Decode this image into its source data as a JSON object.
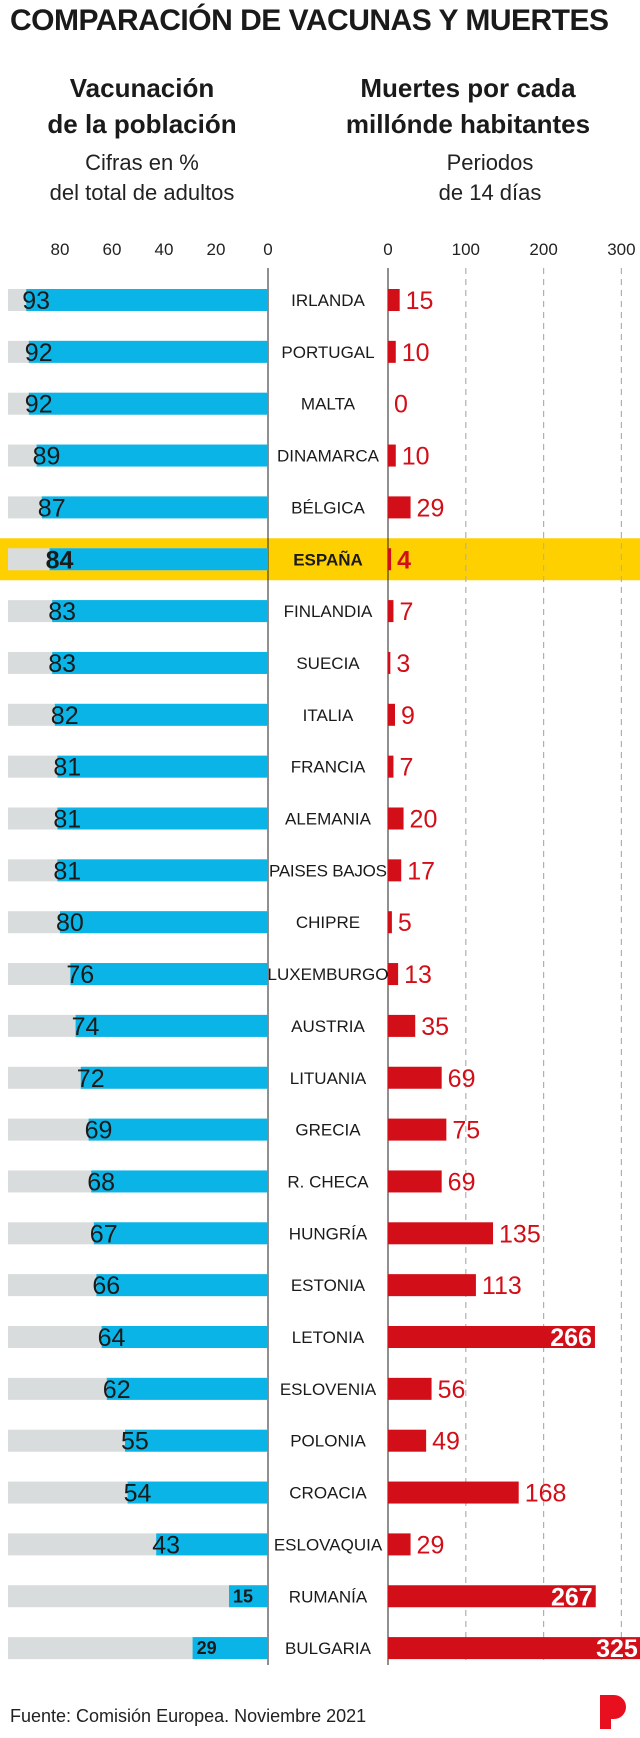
{
  "title": "COMPARACIÓN DE VACUNAS Y MUERTES",
  "left_panel": {
    "title_line1": "Vacunación",
    "title_line2": "de la población",
    "subtitle_line1": "Cifras en %",
    "subtitle_line2": "del total de adultos"
  },
  "right_panel": {
    "title_line1": "Muertes por cada",
    "title_line2": "millónde habitantes",
    "subtitle_line1": "Periodos",
    "subtitle_line2": "de 14 días"
  },
  "source": "Fuente: Comisión Europea. Noviembre 2021",
  "colors": {
    "vaccination": "#0ab4e6",
    "background_bar": "#d9dcdc",
    "deaths": "#d20e18",
    "highlight": "#ffd000",
    "grid": "#b0b0b0"
  },
  "chart_data": [
    {
      "type": "bar",
      "orientation": "horizontal",
      "direction": "right-to-left",
      "title": "Vacunación de la población",
      "subtitle": "Cifras en % del total de adultos",
      "xlim": [
        0,
        100
      ],
      "ticks": [
        80,
        60,
        40,
        20,
        0
      ],
      "categories": [
        "IRLANDA",
        "PORTUGAL",
        "MALTA",
        "DINAMARCA",
        "BÉLGICA",
        "ESPAÑA",
        "FINLANDIA",
        "SUECIA",
        "ITALIA",
        "FRANCIA",
        "ALEMANIA",
        "PAISES BAJOS",
        "CHIPRE",
        "LUXEMBURGO",
        "AUSTRIA",
        "LITUANIA",
        "GRECIA",
        "R. CHECA",
        "HUNGRÍA",
        "ESTONIA",
        "LETONIA",
        "ESLOVENIA",
        "POLONIA",
        "CROACIA",
        "ESLOVAQUIA",
        "RUMANÍA",
        "BULGARIA"
      ],
      "values": [
        93,
        92,
        92,
        89,
        87,
        84,
        83,
        83,
        82,
        81,
        81,
        81,
        80,
        76,
        74,
        72,
        69,
        68,
        67,
        66,
        64,
        62,
        55,
        54,
        43,
        15,
        29
      ],
      "highlight": "ESPAÑA"
    },
    {
      "type": "bar",
      "orientation": "horizontal",
      "title": "Muertes por cada millónde habitantes",
      "subtitle": "Periodos de 14 días",
      "xlim": [
        0,
        325
      ],
      "ticks": [
        0,
        100,
        200,
        300
      ],
      "categories": [
        "IRLANDA",
        "PORTUGAL",
        "MALTA",
        "DINAMARCA",
        "BÉLGICA",
        "ESPAÑA",
        "FINLANDIA",
        "SUECIA",
        "ITALIA",
        "FRANCIA",
        "ALEMANIA",
        "PAISES BAJOS",
        "CHIPRE",
        "LUXEMBURGO",
        "AUSTRIA",
        "LITUANIA",
        "GRECIA",
        "R. CHECA",
        "HUNGRÍA",
        "ESTONIA",
        "LETONIA",
        "ESLOVENIA",
        "POLONIA",
        "CROACIA",
        "ESLOVAQUIA",
        "RUMANÍA",
        "BULGARIA"
      ],
      "values": [
        15,
        10,
        0,
        10,
        29,
        4,
        7,
        3,
        9,
        7,
        20,
        17,
        5,
        13,
        35,
        69,
        75,
        69,
        135,
        113,
        266,
        56,
        49,
        168,
        29,
        267,
        325
      ],
      "highlight": "ESPAÑA"
    }
  ]
}
